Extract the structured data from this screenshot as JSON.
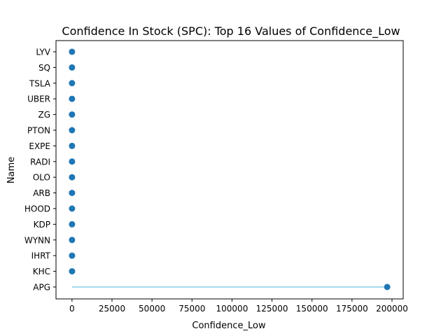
{
  "chart_data": {
    "type": "lollipop",
    "title": "Confidence In Stock (SPC): Top 16 Values of Confidence_Low",
    "xlabel": "Confidence_Low",
    "ylabel": "Name",
    "xlim": [
      -10000,
      207000
    ],
    "x_ticks": [
      0,
      25000,
      50000,
      75000,
      100000,
      125000,
      150000,
      175000,
      200000
    ],
    "x_tick_labels": [
      "0",
      "25000",
      "50000",
      "75000",
      "100000",
      "125000",
      "150000",
      "175000",
      "200000"
    ],
    "categories": [
      "APG",
      "KHC",
      "IHRT",
      "WYNN",
      "KDP",
      "HOOD",
      "ARB",
      "OLO",
      "RADI",
      "EXPE",
      "PTON",
      "ZG",
      "UBER",
      "TSLA",
      "SQ",
      "LYV"
    ],
    "values": [
      197000,
      30,
      25,
      20,
      18,
      15,
      12,
      10,
      9,
      8,
      7,
      6,
      5,
      4,
      3,
      2
    ],
    "grid": false,
    "colors": {
      "marker": "#1f77b4",
      "stem": "#87ceeb",
      "axis": "#000000"
    }
  }
}
